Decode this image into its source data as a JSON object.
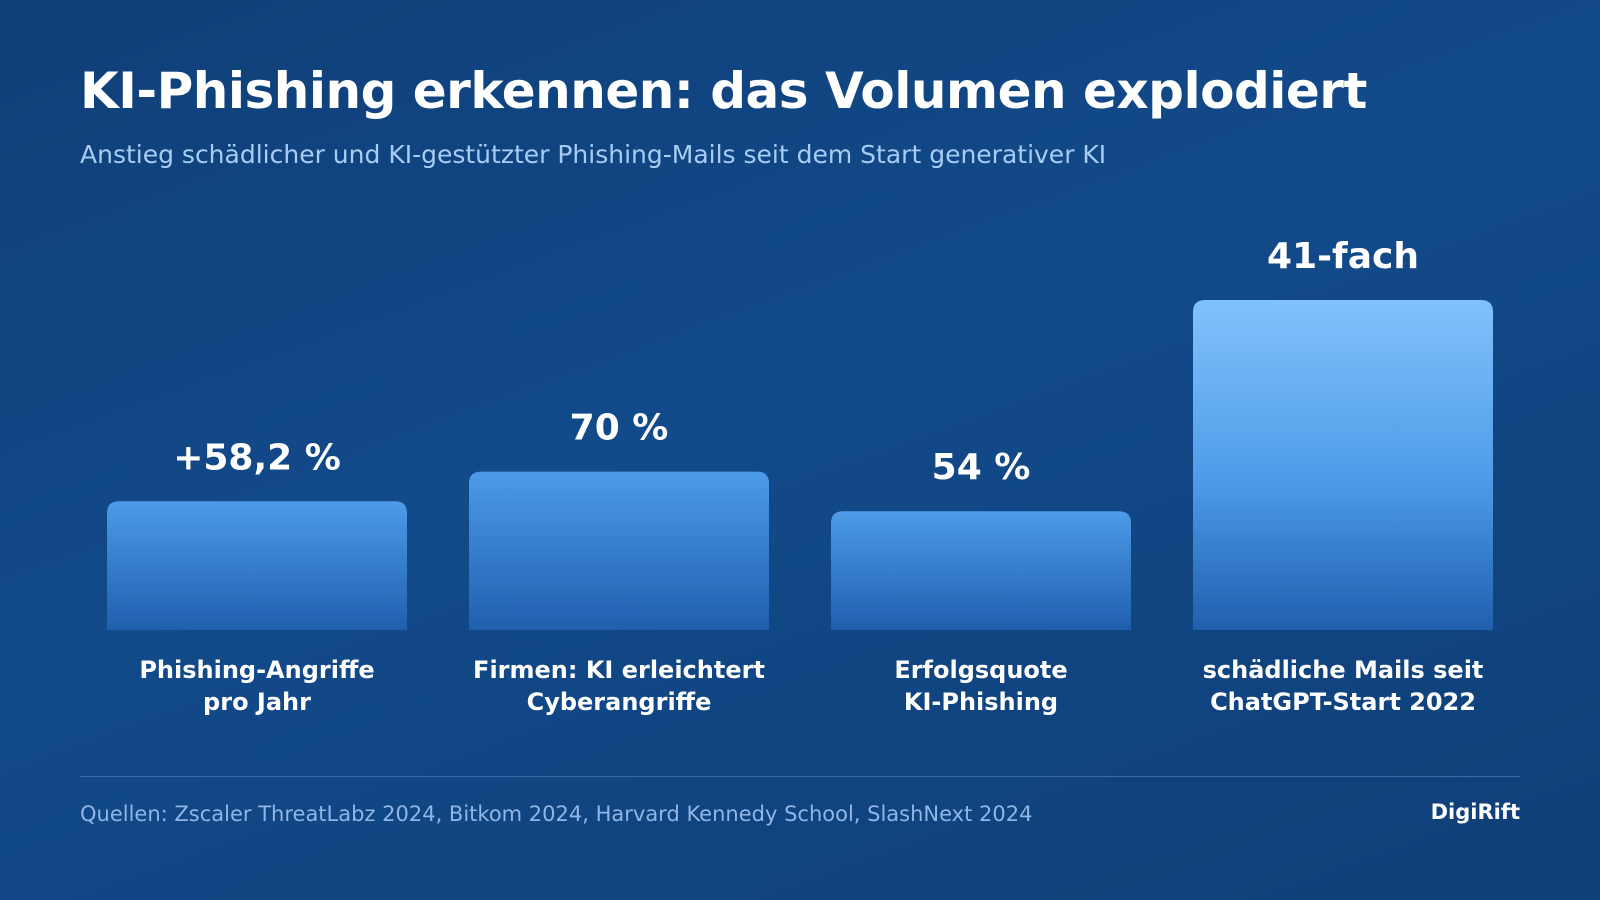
{
  "title": "KI-Phishing erkennen: das Volumen explodiert",
  "subtitle": "Anstieg schädlicher und KI-gestützter Phishing-Mails seit dem Start generativer KI",
  "source": "Quellen: Zscaler ThreatLabz 2024, Bitkom 2024, Harvard Kennedy School, SlashNext 2024",
  "brand": "DigiRift",
  "colors": {
    "background": "#0f3f78",
    "bar_top": "#4d9be8",
    "bar_bottom": "#1f5fae",
    "highlight_bar_top": "#82c2fb",
    "subtitle": "#a8cdf5",
    "source": "#8fb6e6"
  },
  "chart_data": {
    "type": "bar",
    "categories": [
      [
        "Phishing-Angriffe",
        "pro Jahr"
      ],
      [
        "Firmen: KI erleichtert",
        "Cyberangriffe"
      ],
      [
        "Erfolgsquote",
        "KI-Phishing"
      ],
      [
        "schädliche Mails seit",
        "ChatGPT-Start 2022"
      ]
    ],
    "data_labels": [
      "+58,2 %",
      "70 %",
      "54 %",
      "41-fach"
    ],
    "values": [
      58.2,
      70,
      54,
      41
    ],
    "relative_bar_heights": [
      0.39,
      0.48,
      0.36,
      1.0
    ],
    "highlight_index": 3,
    "title": "KI-Phishing erkennen: das Volumen explodiert",
    "xlabel": "",
    "ylabel": "",
    "grid": false,
    "legend": "none"
  }
}
